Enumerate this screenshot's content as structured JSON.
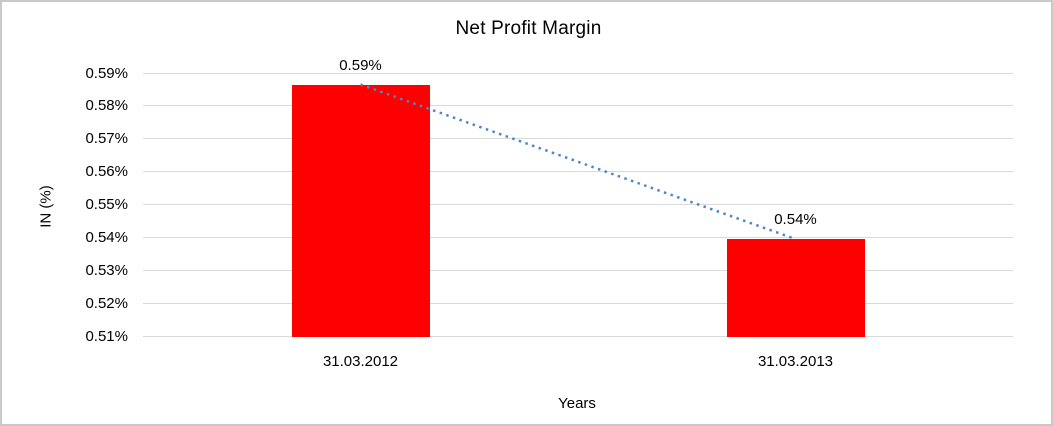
{
  "window": {
    "background": "#ffffff",
    "border_color": "#c9c9c9"
  },
  "chart_data": {
    "type": "bar",
    "title": "Net Profit Margin",
    "xlabel": "Years",
    "ylabel": "IN (%)",
    "categories": [
      "31.03.2012",
      "31.03.2013"
    ],
    "series": [
      {
        "name": "Net Profit Margin",
        "values": [
          0.5865,
          0.5395
        ]
      }
    ],
    "data_labels": [
      "0.59%",
      "0.54%"
    ],
    "yticks": [
      {
        "value": 0.59,
        "label": "0.59%"
      },
      {
        "value": 0.58,
        "label": "0.58%"
      },
      {
        "value": 0.57,
        "label": "0.57%"
      },
      {
        "value": 0.56,
        "label": "0.56%"
      },
      {
        "value": 0.55,
        "label": "0.55%"
      },
      {
        "value": 0.54,
        "label": "0.54%"
      },
      {
        "value": 0.53,
        "label": "0.53%"
      },
      {
        "value": 0.52,
        "label": "0.52%"
      },
      {
        "value": 0.51,
        "label": "0.51%"
      }
    ],
    "ylim": [
      0.51,
      0.59
    ],
    "grid": true,
    "legend_position": "none",
    "bar_color": "#ff0000",
    "gridline_color": "#d9d9d9",
    "text_color": "#000000",
    "trendline": {
      "type": "linear",
      "style": "dotted",
      "color": "#4a87c9",
      "points": [
        0.5865,
        0.5395
      ]
    }
  }
}
